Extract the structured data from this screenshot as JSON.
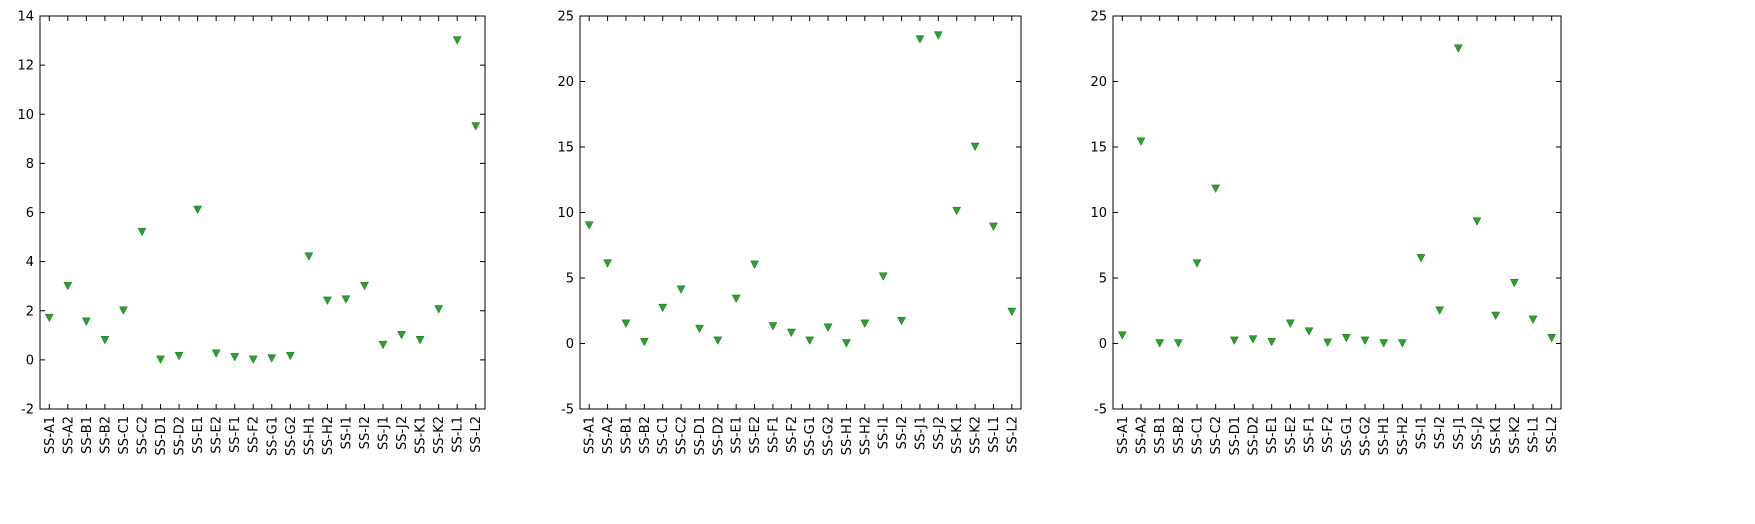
{
  "chart_data": [
    {
      "type": "scatter",
      "marker": "triangle-down",
      "marker_color": "#2ca02c",
      "categories": [
        "SS-A1",
        "SS-A2",
        "SS-B1",
        "SS-B2",
        "SS-C1",
        "SS-C2",
        "SS-D1",
        "SS-D2",
        "SS-E1",
        "SS-E2",
        "SS-F1",
        "SS-F2",
        "SS-G1",
        "SS-G2",
        "SS-H1",
        "SS-H2",
        "SS-I1",
        "SS-I2",
        "SS-J1",
        "SS-J2",
        "SS-K1",
        "SS-K2",
        "SS-L1",
        "SS-L2"
      ],
      "values": [
        1.7,
        3.0,
        1.55,
        0.8,
        2.0,
        5.2,
        0.0,
        0.15,
        6.1,
        0.25,
        0.1,
        0.0,
        0.05,
        0.15,
        4.2,
        2.4,
        2.45,
        3.0,
        0.6,
        1.0,
        0.8,
        2.05,
        13.0,
        9.5
      ],
      "ylim": [
        -2,
        14
      ],
      "yticks": [
        -2,
        0,
        2,
        4,
        6,
        8,
        10,
        12,
        14
      ]
    },
    {
      "type": "scatter",
      "marker": "triangle-down",
      "marker_color": "#2ca02c",
      "categories": [
        "SS-A1",
        "SS-A2",
        "SS-B1",
        "SS-B2",
        "SS-C1",
        "SS-C2",
        "SS-D1",
        "SS-D2",
        "SS-E1",
        "SS-E2",
        "SS-F1",
        "SS-F2",
        "SS-G1",
        "SS-G2",
        "SS-H1",
        "SS-H2",
        "SS-I1",
        "SS-I2",
        "SS-J1",
        "SS-J2",
        "SS-K1",
        "SS-K2",
        "SS-L1",
        "SS-L2"
      ],
      "values": [
        9.0,
        6.1,
        1.5,
        0.1,
        2.7,
        4.1,
        1.1,
        0.2,
        3.4,
        6.0,
        1.3,
        0.8,
        0.2,
        1.2,
        0.0,
        1.5,
        5.1,
        1.7,
        23.2,
        23.5,
        10.1,
        15.0,
        8.9,
        2.4
      ],
      "ylim": [
        -5,
        25
      ],
      "yticks": [
        -5,
        0,
        5,
        10,
        15,
        20,
        25
      ]
    },
    {
      "type": "scatter",
      "marker": "triangle-down",
      "marker_color": "#2ca02c",
      "categories": [
        "SS-A1",
        "SS-A2",
        "SS-B1",
        "SS-B2",
        "SS-C1",
        "SS-C2",
        "SS-D1",
        "SS-D2",
        "SS-E1",
        "SS-E2",
        "SS-F1",
        "SS-F2",
        "SS-G1",
        "SS-G2",
        "SS-H1",
        "SS-H2",
        "SS-I1",
        "SS-I2",
        "SS-J1",
        "SS-J2",
        "SS-K1",
        "SS-K2",
        "SS-L1",
        "SS-L2"
      ],
      "values": [
        0.6,
        15.4,
        0.0,
        0.0,
        6.1,
        11.8,
        0.2,
        0.3,
        0.1,
        1.5,
        0.9,
        0.05,
        0.4,
        0.2,
        0.0,
        0.0,
        6.5,
        2.5,
        22.5,
        9.3,
        2.1,
        4.6,
        1.8,
        0.4
      ],
      "ylim": [
        -5,
        25
      ],
      "yticks": [
        -5,
        0,
        5,
        10,
        15,
        20,
        25
      ]
    }
  ]
}
